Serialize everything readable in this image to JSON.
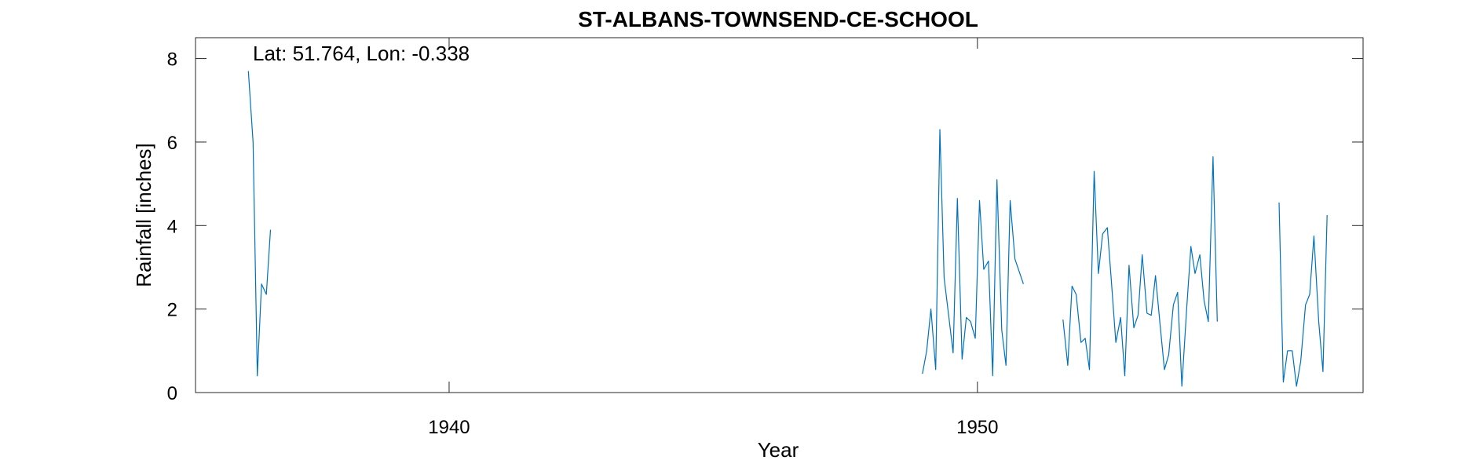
{
  "chart_data": {
    "type": "line",
    "title": "ST-ALBANS-TOWNSEND-CE-SCHOOL",
    "xlabel": "Year",
    "ylabel": "Rainfall [inches]",
    "annotation": "Lat: 51.764, Lon: -0.338",
    "xlim": [
      1935.2,
      1957.3
    ],
    "ylim": [
      0,
      8.5
    ],
    "xticks": [
      1940,
      1950
    ],
    "yticks": [
      0,
      2,
      4,
      6,
      8
    ],
    "grid": false,
    "line_color": "#0072BD",
    "series": [
      {
        "segments": [
          [
            [
              1936.2,
              7.7
            ],
            [
              1936.29,
              6.0
            ],
            [
              1936.37,
              0.4
            ],
            [
              1936.45,
              2.6
            ],
            [
              1936.54,
              2.35
            ],
            [
              1936.62,
              3.9
            ]
          ],
          [
            [
              1948.96,
              0.45
            ],
            [
              1949.04,
              1.0
            ],
            [
              1949.12,
              2.0
            ],
            [
              1949.21,
              0.55
            ],
            [
              1949.29,
              6.3
            ],
            [
              1949.37,
              2.75
            ],
            [
              1949.46,
              1.8
            ],
            [
              1949.54,
              0.95
            ],
            [
              1949.62,
              4.65
            ],
            [
              1949.71,
              0.8
            ],
            [
              1949.79,
              1.8
            ],
            [
              1949.87,
              1.7
            ],
            [
              1949.96,
              1.3
            ],
            [
              1950.04,
              4.6
            ],
            [
              1950.12,
              2.95
            ],
            [
              1950.21,
              3.15
            ],
            [
              1950.29,
              0.4
            ],
            [
              1950.37,
              5.1
            ],
            [
              1950.46,
              1.5
            ],
            [
              1950.54,
              0.65
            ],
            [
              1950.62,
              4.6
            ],
            [
              1950.71,
              3.2
            ],
            [
              1950.79,
              2.9
            ],
            [
              1950.87,
              2.6
            ]
          ],
          [
            [
              1951.62,
              1.75
            ],
            [
              1951.71,
              0.65
            ],
            [
              1951.79,
              2.55
            ],
            [
              1951.87,
              2.35
            ],
            [
              1951.96,
              1.2
            ],
            [
              1952.04,
              1.3
            ],
            [
              1952.12,
              0.55
            ],
            [
              1952.21,
              5.3
            ],
            [
              1952.29,
              2.85
            ],
            [
              1952.37,
              3.8
            ],
            [
              1952.46,
              3.95
            ],
            [
              1952.54,
              2.6
            ],
            [
              1952.62,
              1.2
            ],
            [
              1952.71,
              1.8
            ],
            [
              1952.79,
              0.4
            ],
            [
              1952.87,
              3.05
            ],
            [
              1952.96,
              1.55
            ],
            [
              1953.04,
              1.85
            ],
            [
              1953.12,
              3.3
            ],
            [
              1953.21,
              1.9
            ],
            [
              1953.29,
              1.85
            ],
            [
              1953.37,
              2.8
            ],
            [
              1953.46,
              1.6
            ],
            [
              1953.54,
              0.55
            ],
            [
              1953.62,
              0.9
            ],
            [
              1953.71,
              2.1
            ],
            [
              1953.79,
              2.4
            ],
            [
              1953.87,
              0.15
            ],
            [
              1953.96,
              2.0
            ],
            [
              1954.04,
              3.5
            ],
            [
              1954.12,
              2.85
            ],
            [
              1954.21,
              3.3
            ],
            [
              1954.29,
              2.2
            ],
            [
              1954.37,
              1.7
            ],
            [
              1954.46,
              5.65
            ],
            [
              1954.54,
              1.7
            ]
          ],
          [
            [
              1955.71,
              4.55
            ],
            [
              1955.79,
              0.25
            ],
            [
              1955.87,
              1.0
            ],
            [
              1955.96,
              1.0
            ],
            [
              1956.04,
              0.15
            ],
            [
              1956.12,
              0.75
            ],
            [
              1956.21,
              2.1
            ],
            [
              1956.29,
              2.35
            ],
            [
              1956.37,
              3.75
            ],
            [
              1956.46,
              1.7
            ],
            [
              1956.54,
              0.5
            ],
            [
              1956.62,
              4.25
            ]
          ]
        ]
      }
    ]
  }
}
